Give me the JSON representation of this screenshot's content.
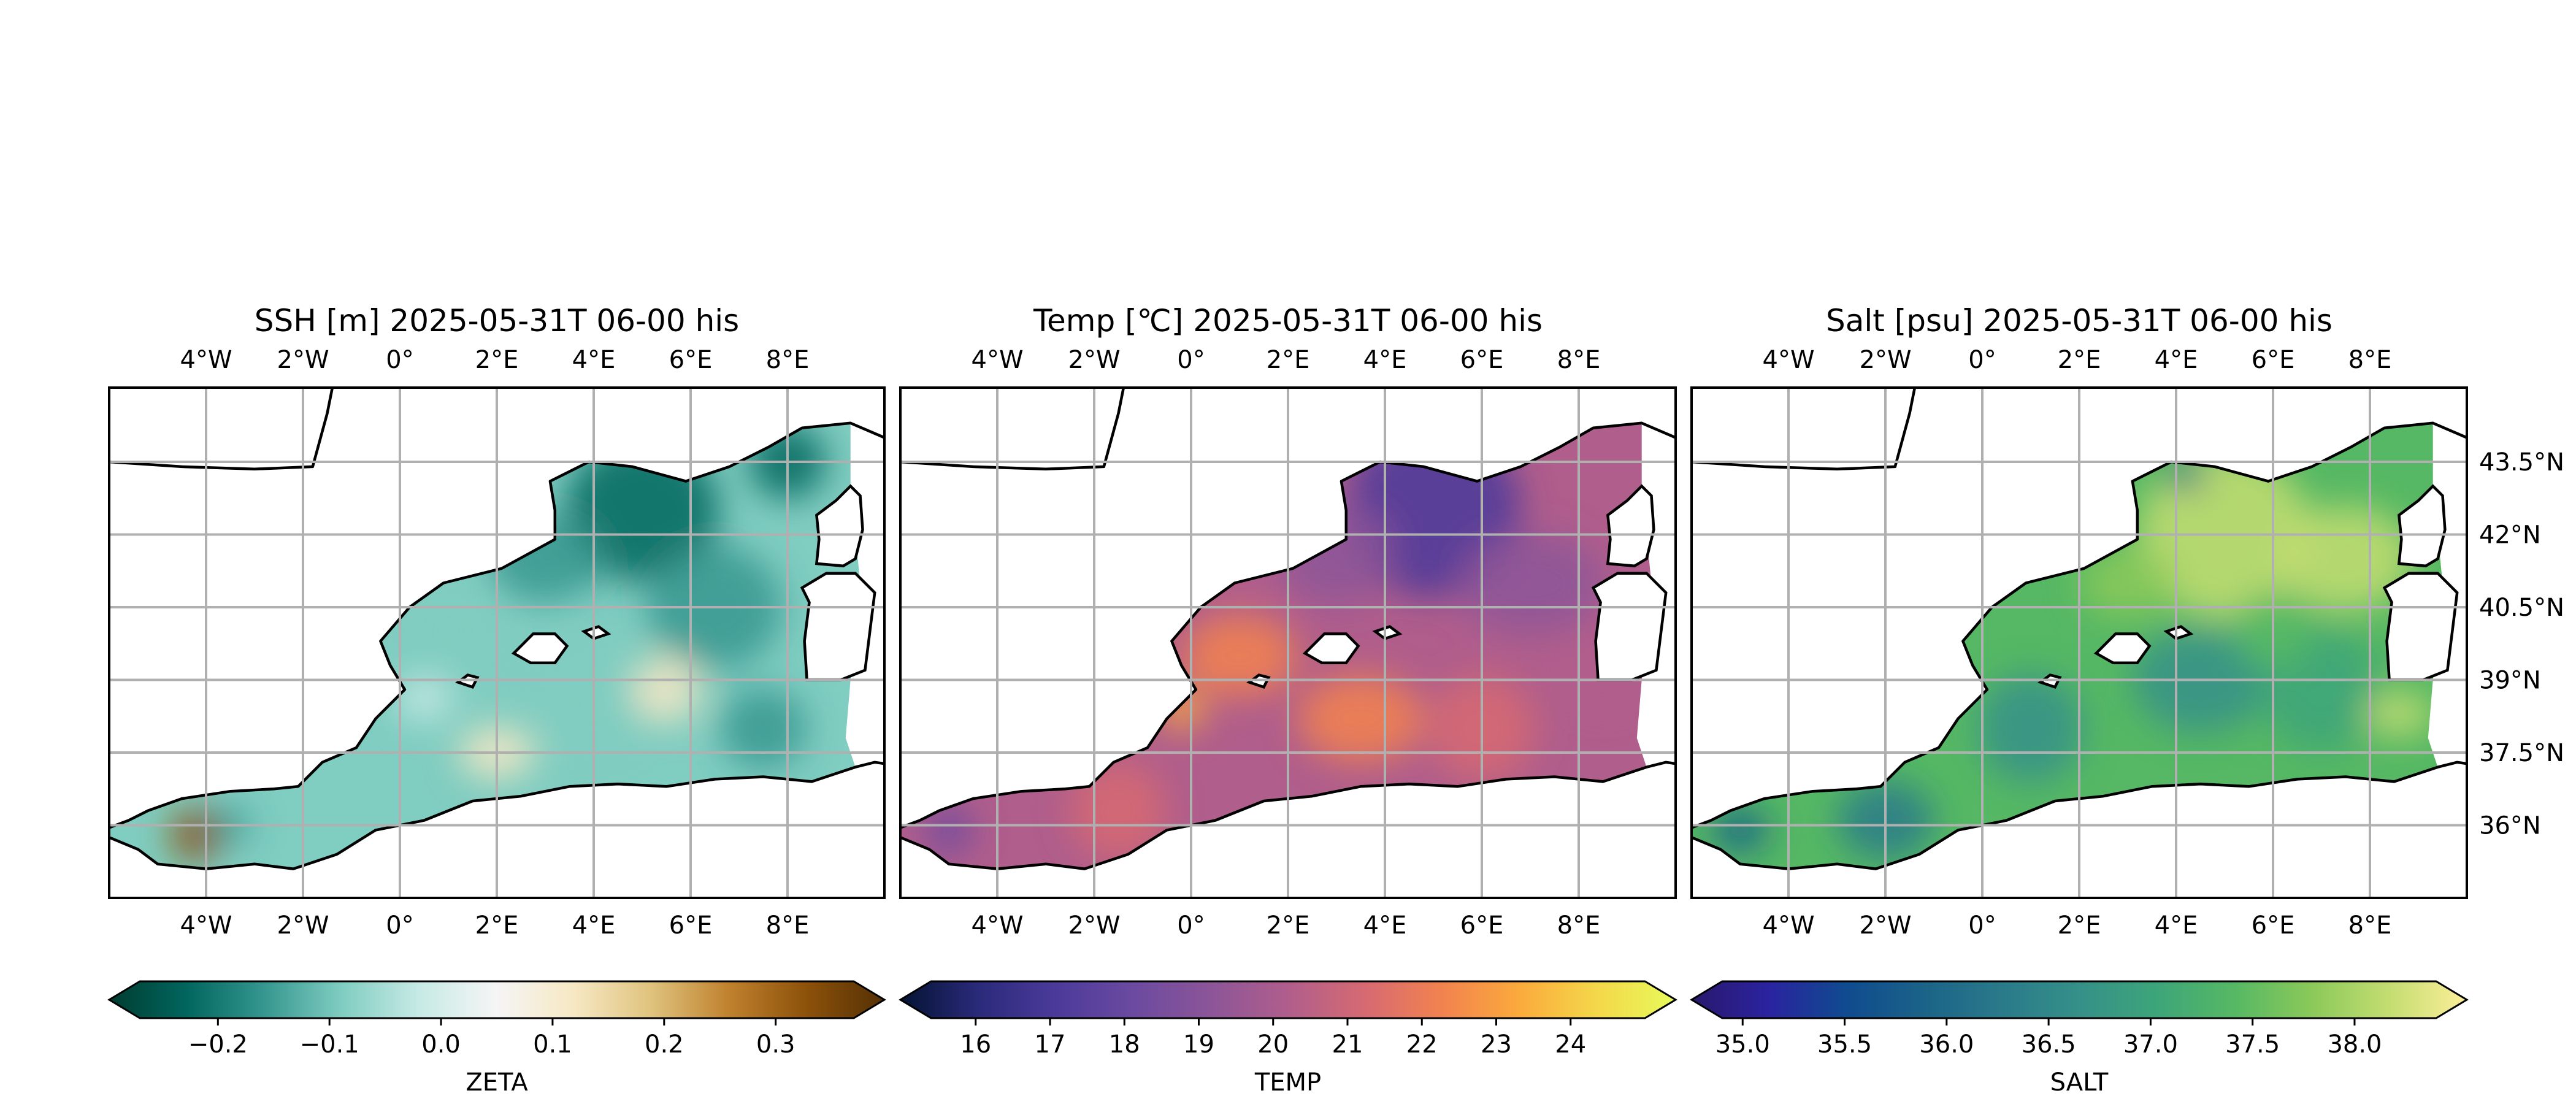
{
  "panels": [
    {
      "title": "SSH [m] 2025-05-31T 06-00 his",
      "colorbar_label": "ZETA",
      "colorbar_ticks": [
        "−0.2",
        "−0.1",
        "0.0",
        "0.1",
        "0.2",
        "0.3"
      ],
      "colorbar_tick_values": [
        -0.2,
        -0.1,
        0.0,
        0.1,
        0.2,
        0.3
      ],
      "colorbar_range": [
        -0.27,
        0.37
      ],
      "colormap": [
        "#003c30",
        "#01665e",
        "#35978f",
        "#80cdc1",
        "#c7eae5",
        "#f5f5f5",
        "#f6e8c3",
        "#dfc27d",
        "#bf812d",
        "#8c510a",
        "#543005"
      ],
      "colorbar_extend": "both"
    },
    {
      "title": "Temp [℃] 2025-05-31T 06-00 his",
      "colorbar_label": "TEMP",
      "colorbar_ticks": [
        "16",
        "17",
        "18",
        "19",
        "20",
        "21",
        "22",
        "23",
        "24"
      ],
      "colorbar_tick_values": [
        16,
        17,
        18,
        19,
        20,
        21,
        22,
        23,
        24
      ],
      "colorbar_range": [
        15.4,
        25.0
      ],
      "colormap": [
        "#041332",
        "#2a2a7a",
        "#4b3a9a",
        "#6b4aa0",
        "#8c5598",
        "#b05e8c",
        "#d66a72",
        "#f2834f",
        "#fbab3c",
        "#f4d84a",
        "#e7fa5a"
      ],
      "colorbar_extend": "both"
    },
    {
      "title": "Salt [psu] 2025-05-31T 06-00 his",
      "colorbar_label": "SALT",
      "colorbar_ticks": [
        "35.0",
        "35.5",
        "36.0",
        "36.5",
        "37.0",
        "37.5",
        "38.0"
      ],
      "colorbar_tick_values": [
        35.0,
        35.5,
        36.0,
        36.5,
        37.0,
        37.5,
        38.0
      ],
      "colorbar_range": [
        34.9,
        38.4
      ],
      "colormap": [
        "#29186b",
        "#2a23a0",
        "#0f4b8f",
        "#1b6388",
        "#2a7a8a",
        "#359088",
        "#3da57a",
        "#56b864",
        "#8bc95a",
        "#c4dd71",
        "#fdee99"
      ],
      "colorbar_extend": "both"
    }
  ],
  "lon_ticks": [
    "4°W",
    "2°W",
    "0°",
    "2°E",
    "4°E",
    "6°E",
    "8°E"
  ],
  "lat_ticks": [
    "36°N",
    "37.5°N",
    "39°N",
    "40.5°N",
    "42°N",
    "43.5°N"
  ]
}
